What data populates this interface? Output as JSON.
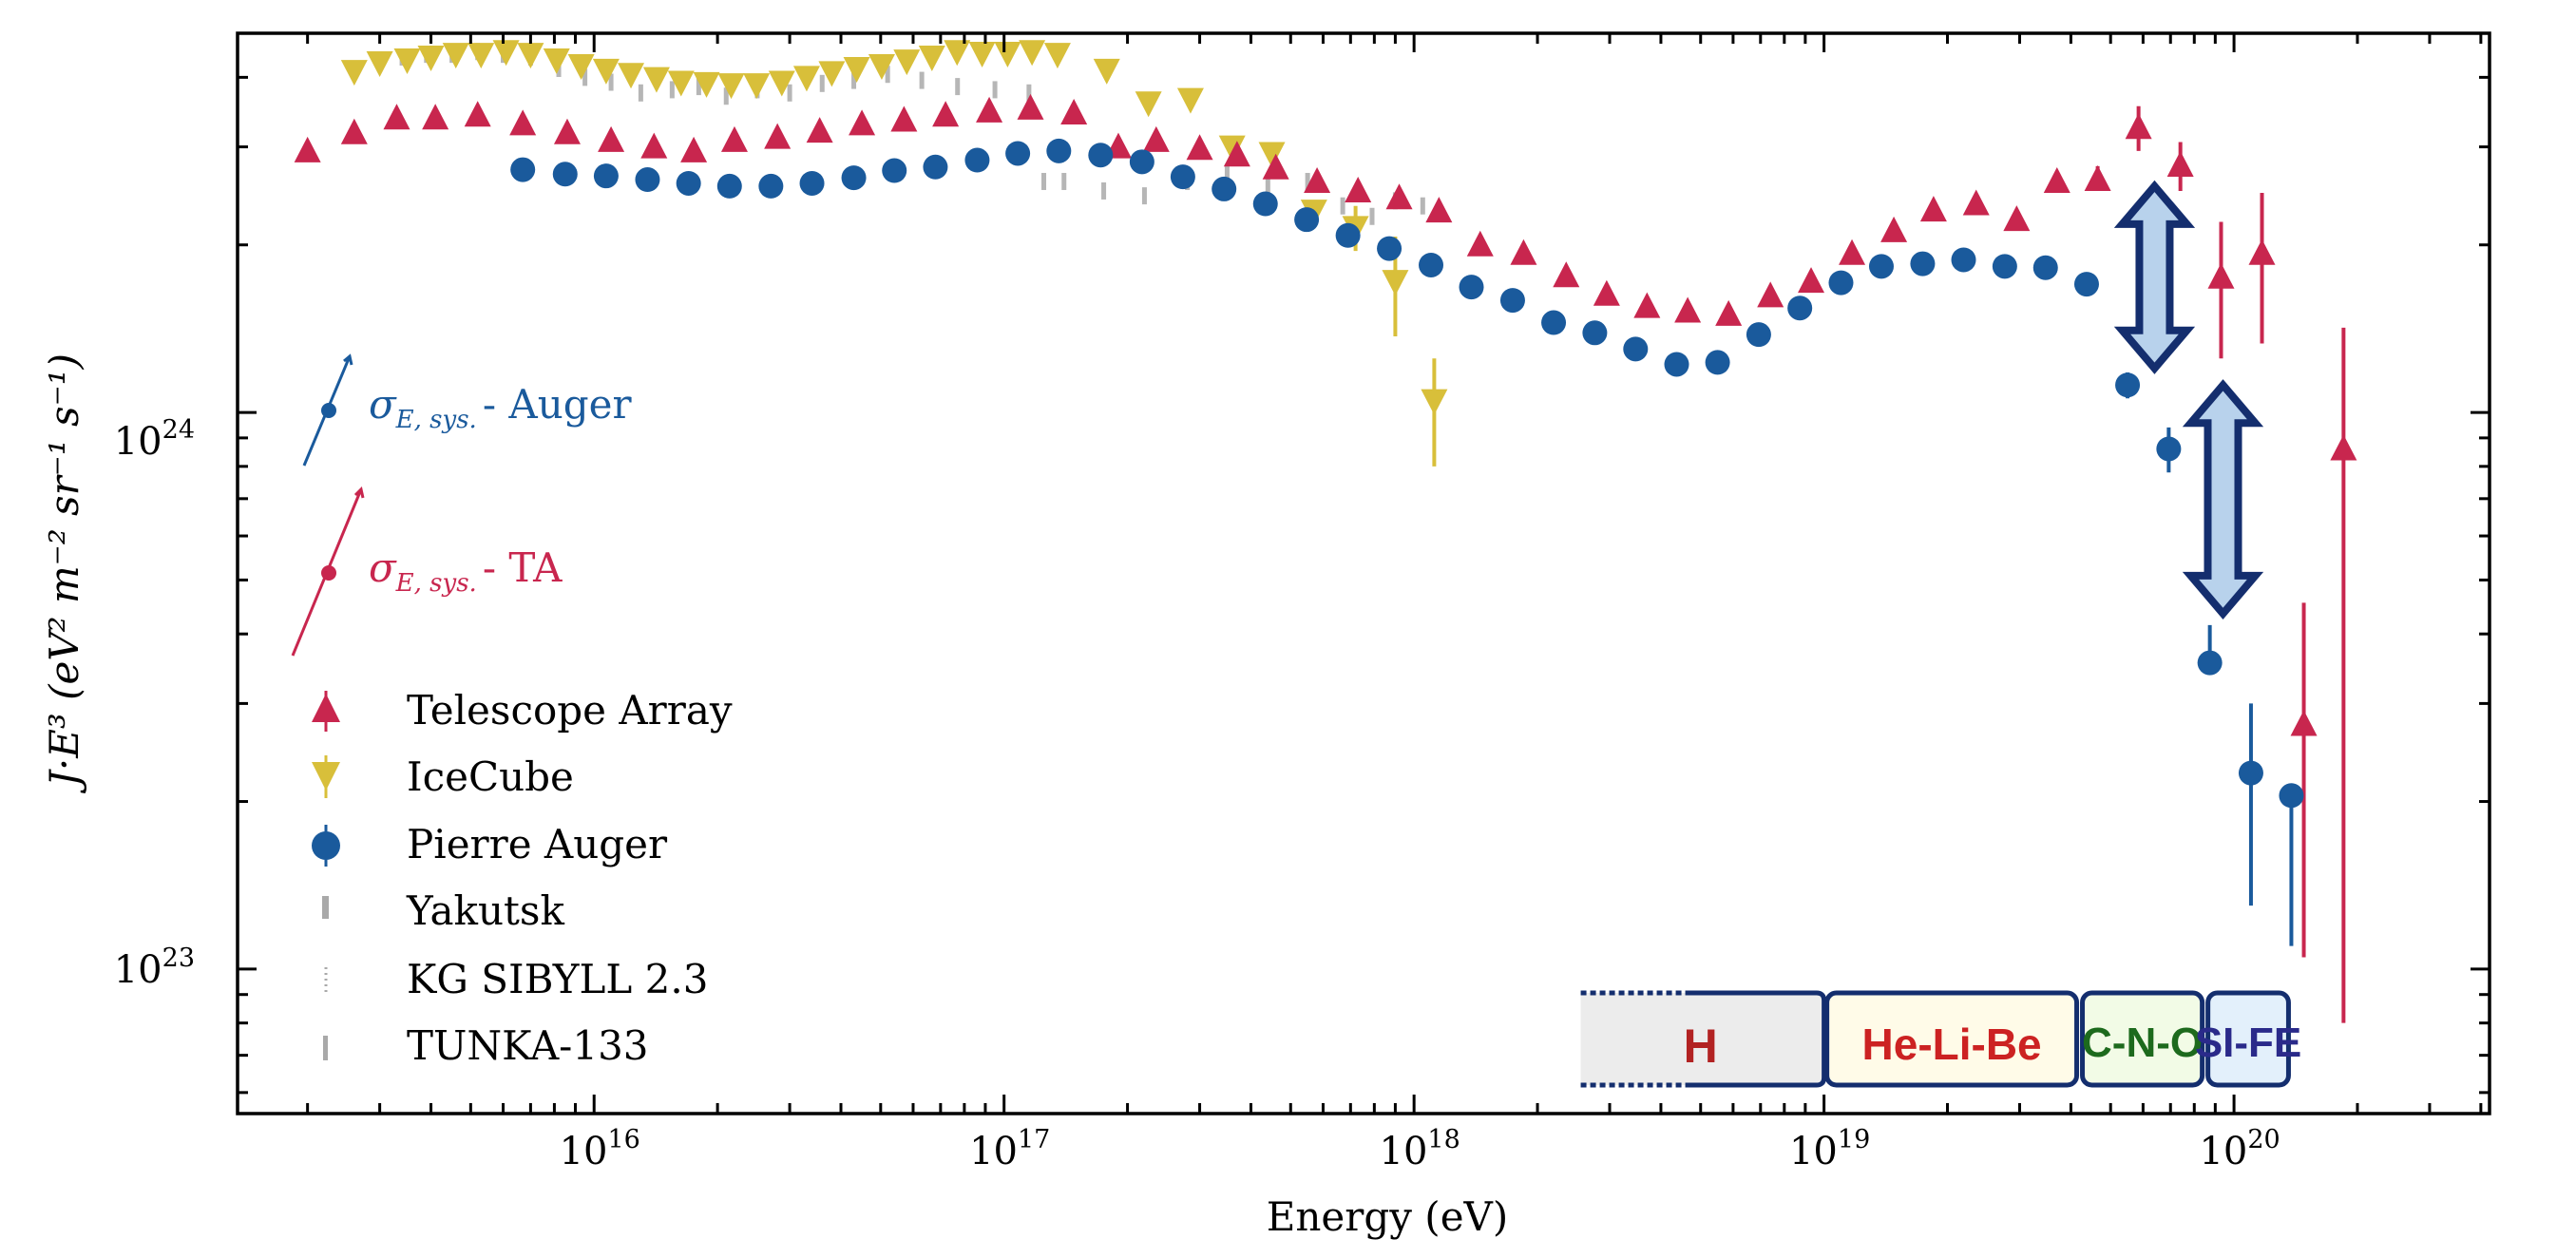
{
  "colors": {
    "ta": "#c8264e",
    "icecube": "#d8bf3a",
    "auger": "#1a5a9c",
    "gray": "#a9a9a9",
    "arrow_dark": "#142e6e",
    "arrow_fill": "#b8d2ec",
    "h_fill": "#ececec",
    "h_text": "#b22222",
    "he_fill": "#fffbe8",
    "he_text": "#cc2222",
    "cno_fill": "#f2fbe6",
    "cno_text": "#1d6a1d",
    "sife_fill": "#e3f0fb",
    "sife_text": "#2a2a8a"
  },
  "chart_data": {
    "type": "scatter",
    "title": "",
    "xlabel": "Energy (eV)",
    "ylabel": "J·E³ (eV² m⁻² sr⁻¹ s⁻¹)",
    "xscale": "log",
    "yscale": "log",
    "xlim": [
      1350000000000000.0,
      4.2e+20
    ],
    "ylim": [
      5.5e+22,
      4.8e+24
    ],
    "x_ticks": [
      {
        "value": 1e+16,
        "base": "10",
        "exp": "16"
      },
      {
        "value": 1e+17,
        "base": "10",
        "exp": "17"
      },
      {
        "value": 1e+18,
        "base": "10",
        "exp": "18"
      },
      {
        "value": 1e+19,
        "base": "10",
        "exp": "19"
      },
      {
        "value": 1e+20,
        "base": "10",
        "exp": "20"
      }
    ],
    "y_ticks": [
      {
        "value": 1e+23,
        "base": "10",
        "exp": "23"
      },
      {
        "value": 1e+24,
        "base": "10",
        "exp": "24"
      }
    ],
    "legend": {
      "position": "lower-left",
      "entries": [
        {
          "label": "Telescope Array",
          "marker": "triangle-up",
          "series": "ta"
        },
        {
          "label": "IceCube",
          "marker": "triangle-down",
          "series": "icecube"
        },
        {
          "label": "Pierre Auger",
          "marker": "circle",
          "series": "auger"
        },
        {
          "label": "Yakutsk",
          "marker": "gray-bar",
          "series": "gray"
        },
        {
          "label": "KG SIBYLL 2.3",
          "marker": "gray-dots",
          "series": "gray"
        },
        {
          "label": "TUNKA-133",
          "marker": "gray-bar",
          "series": "gray"
        }
      ]
    },
    "annotations": {
      "auger_sys": {
        "sigma": "σ",
        "sub": "E, sys.",
        "label": "- Auger"
      },
      "ta_sys": {
        "sigma": "σ",
        "sub": "E, sys.",
        "label": "- TA"
      }
    },
    "mass_bands": [
      {
        "label": "H",
        "x_start": 2.55e+18,
        "x_end": 1e+19,
        "style": "h"
      },
      {
        "label": "He-Li-Be",
        "x_start": 1e+19,
        "x_end": 4.2e+19,
        "style": "he"
      },
      {
        "label": "C-N-O",
        "x_start": 4.2e+19,
        "x_end": 8.5e+19,
        "style": "cno"
      },
      {
        "label": "SI-FE",
        "x_start": 8.5e+19,
        "x_end": 1.38e+20,
        "style": "sife"
      }
    ],
    "series": [
      {
        "name": "Telescope Array",
        "key": "ta",
        "marker": "triangle-up",
        "x": [
          2000000000000000.0,
          2600000000000000.0,
          3300000000000000.0,
          4100000000000000.0,
          5200000000000000.0,
          6700000000000000.0,
          8600000000000000.0,
          1.1e+16,
          1.4e+16,
          1.75e+16,
          2.2e+16,
          2.8e+16,
          3.55e+16,
          4.5e+16,
          5.7e+16,
          7.2e+16,
          9.2e+16,
          1.16e+17,
          1.48e+17,
          1.9e+17,
          2.35e+17,
          3e+17,
          3.7e+17,
          4.6e+17,
          5.8e+17,
          7.3e+17,
          9.2e+17,
          1.15e+18,
          1.45e+18,
          1.85e+18,
          2.35e+18,
          2.95e+18,
          3.7e+18,
          4.65e+18,
          5.85e+18,
          7.4e+18,
          9.3e+18,
          1.17e+19,
          1.48e+19,
          1.85e+19,
          2.35e+19,
          2.95e+19,
          3.7e+19,
          4.65e+19,
          5.85e+19,
          7.4e+19,
          9.3e+19,
          1.17e+20,
          1.48e+20,
          1.85e+20
        ],
        "y": [
          2.95e+24,
          3.18e+24,
          3.38e+24,
          3.38e+24,
          3.42e+24,
          3.3e+24,
          3.18e+24,
          3.08e+24,
          3e+24,
          2.95e+24,
          3.08e+24,
          3.12e+24,
          3.2e+24,
          3.3e+24,
          3.35e+24,
          3.42e+24,
          3.48e+24,
          3.52e+24,
          3.45e+24,
          3e+24,
          3.08e+24,
          2.98e+24,
          2.9e+24,
          2.75e+24,
          2.6e+24,
          2.5e+24,
          2.43e+24,
          2.3e+24,
          2e+24,
          1.93e+24,
          1.76e+24,
          1.63e+24,
          1.55e+24,
          1.52e+24,
          1.5e+24,
          1.62e+24,
          1.72e+24,
          1.93e+24,
          2.12e+24,
          2.31e+24,
          2.37e+24,
          2.22e+24,
          2.6e+24,
          2.62e+24,
          3.25e+24,
          2.78e+24,
          1.75e+24,
          1.93e+24,
          2.75e+23,
          8.6e+23
        ],
        "yerr_lo": [
          0,
          0,
          0,
          0,
          0,
          0,
          0,
          0,
          0,
          0,
          0,
          0,
          0,
          0,
          0,
          0,
          0,
          0,
          0,
          0,
          0,
          0,
          0,
          0,
          0,
          0,
          0,
          0,
          0,
          0,
          0,
          0,
          0,
          0,
          0,
          0,
          0,
          0,
          0,
          0,
          0,
          0,
          0,
          1e+23,
          3e+23,
          2.8e+23,
          5e+23,
          6e+23,
          1.7e+23,
          7.8e+23
        ],
        "yerr_hi": [
          0,
          0,
          0,
          0,
          0,
          0,
          0,
          0,
          0,
          0,
          0,
          0,
          0,
          0,
          0,
          0,
          0,
          0,
          0,
          0,
          0,
          0,
          0,
          0,
          0,
          0,
          0,
          0,
          0,
          0,
          0,
          0,
          0,
          0,
          0,
          0,
          0,
          0,
          0,
          0,
          0,
          0,
          0,
          1.5e+23,
          3e+23,
          2.8e+23,
          4.5e+23,
          5.5e+23,
          1.8e+23,
          5.6e+23
        ]
      },
      {
        "name": "IceCube",
        "key": "icecube",
        "marker": "triangle-down",
        "x": [
          2600000000000000.0,
          3000000000000000.0,
          3500000000000000.0,
          4000000000000000.0,
          4600000000000000.0,
          5300000000000000.0,
          6100000000000000.0,
          7000000000000000.0,
          8100000000000000.0,
          9300000000000000.0,
          1.07e+16,
          1.23e+16,
          1.42e+16,
          1.63e+16,
          1.88e+16,
          2.16e+16,
          2.49e+16,
          2.87e+16,
          3.3e+16,
          3.8e+16,
          4.37e+16,
          5.03e+16,
          5.79e+16,
          6.67e+16,
          7.68e+16,
          8.84e+16,
          1.02e+17,
          1.17e+17,
          1.35e+17,
          1.78e+17,
          2.25e+17,
          2.85e+17,
          3.6e+17,
          4.5e+17,
          5.7e+17,
          7.2e+17,
          9e+17,
          1.12e+18
        ],
        "y": [
          4.1e+24,
          4.25e+24,
          4.3e+24,
          4.35e+24,
          4.4e+24,
          4.4e+24,
          4.45e+24,
          4.4e+24,
          4.3e+24,
          4.2e+24,
          4.12e+24,
          4.05e+24,
          3.98e+24,
          3.92e+24,
          3.9e+24,
          3.88e+24,
          3.88e+24,
          3.92e+24,
          4e+24,
          4.08e+24,
          4.15e+24,
          4.2e+24,
          4.28e+24,
          4.35e+24,
          4.45e+24,
          4.42e+24,
          4.42e+24,
          4.45e+24,
          4.4e+24,
          4.12e+24,
          3.6e+24,
          3.65e+24,
          3e+24,
          2.92e+24,
          2.3e+24,
          2.15e+24,
          1.72e+24,
          1.05e+24
        ],
        "yerr_lo": [
          0,
          0,
          0,
          0,
          0,
          0,
          0,
          0,
          0,
          0,
          0,
          0,
          0,
          0,
          0,
          0,
          0,
          0,
          0,
          0,
          0,
          0,
          0,
          0,
          0,
          0,
          0,
          0,
          0,
          0,
          0,
          0,
          0,
          0,
          0,
          2e+23,
          3.5e+23,
          2.5e+23
        ],
        "yerr_hi": [
          0,
          0,
          0,
          0,
          0,
          0,
          0,
          0,
          0,
          0,
          0,
          0,
          0,
          0,
          0,
          0,
          0,
          0,
          0,
          0,
          0,
          0,
          0,
          0,
          0,
          0,
          0,
          0,
          0,
          0,
          0,
          0,
          0,
          0,
          0,
          2e+23,
          3.5e+23,
          2e+23
        ]
      },
      {
        "name": "Pierre Auger",
        "key": "auger",
        "marker": "circle",
        "x": [
          6700000000000000.0,
          8500000000000000.0,
          1.07e+16,
          1.35e+16,
          1.7e+16,
          2.14e+16,
          2.7e+16,
          3.4e+16,
          4.3e+16,
          5.4e+16,
          6.8e+16,
          8.6e+16,
          1.08e+17,
          1.36e+17,
          1.72e+17,
          2.17e+17,
          2.73e+17,
          3.44e+17,
          4.34e+17,
          5.47e+17,
          6.9e+17,
          8.7e+17,
          1.1e+18,
          1.38e+18,
          1.74e+18,
          2.19e+18,
          2.76e+18,
          3.47e+18,
          4.37e+18,
          5.5e+18,
          6.93e+18,
          8.73e+18,
          1.1e+19,
          1.38e+19,
          1.74e+19,
          2.19e+19,
          2.76e+19,
          3.47e+19,
          4.37e+19,
          5.5e+19,
          6.93e+19,
          8.73e+19,
          1.1e+20,
          1.38e+20
        ],
        "y": [
          2.73e+24,
          2.68e+24,
          2.66e+24,
          2.62e+24,
          2.58e+24,
          2.55e+24,
          2.55e+24,
          2.58e+24,
          2.64e+24,
          2.72e+24,
          2.76e+24,
          2.84e+24,
          2.92e+24,
          2.95e+24,
          2.9e+24,
          2.82e+24,
          2.65e+24,
          2.52e+24,
          2.37e+24,
          2.22e+24,
          2.08e+24,
          1.97e+24,
          1.84e+24,
          1.68e+24,
          1.59e+24,
          1.45e+24,
          1.39e+24,
          1.3e+24,
          1.22e+24,
          1.23e+24,
          1.38e+24,
          1.54e+24,
          1.71e+24,
          1.83e+24,
          1.85e+24,
          1.88e+24,
          1.83e+24,
          1.82e+24,
          1.7e+24,
          1.12e+24,
          8.6e+23,
          3.55e+23,
          2.25e+23,
          2.05e+23
        ],
        "yerr_lo": [
          0,
          0,
          0,
          0,
          0,
          0,
          0,
          0,
          0,
          0,
          0,
          0,
          0,
          0,
          0,
          0,
          0,
          0,
          0,
          0,
          0,
          0,
          0,
          0,
          0,
          0,
          0,
          0,
          0,
          0,
          0,
          0,
          0,
          0,
          0,
          0,
          0,
          0,
          0,
          6e+22,
          8e+22,
          5e+21,
          9.5e+22,
          9.5e+22
        ],
        "yerr_hi": [
          0,
          0,
          0,
          0,
          0,
          0,
          0,
          0,
          0,
          0,
          0,
          0,
          0,
          0,
          0,
          0,
          0,
          0,
          0,
          0,
          0,
          0,
          0,
          0,
          0,
          0,
          0,
          0,
          0,
          0,
          0,
          0,
          0,
          0,
          0,
          0,
          0,
          0,
          0,
          6e+22,
          8e+22,
          6e+22,
          7.5e+22,
          0.0
        ]
      }
    ]
  }
}
